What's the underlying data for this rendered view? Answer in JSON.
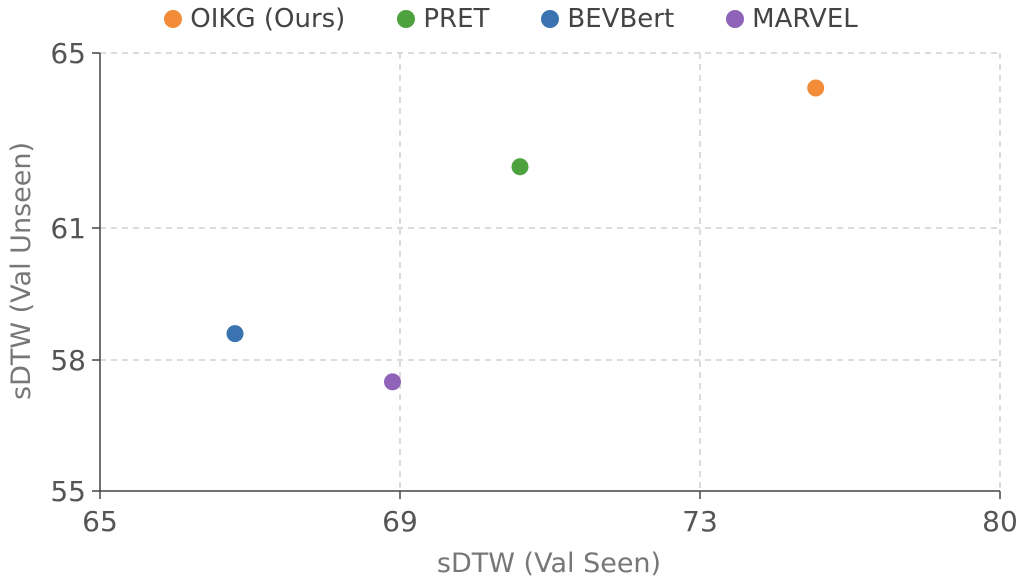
{
  "chart_data": {
    "type": "scatter",
    "xlabel": "sDTW (Val Seen)",
    "ylabel": "sDTW (Val Unseen)",
    "x_ticks": [
      "65",
      "69",
      "73",
      "80"
    ],
    "y_ticks": [
      "55",
      "58",
      "61",
      "65"
    ],
    "grid": true,
    "legend_placement": "top-center",
    "series": [
      {
        "name": "OIKG (Ours)",
        "color": "#f28c38",
        "x": 75.7,
        "y": 64.2
      },
      {
        "name": "PRET",
        "color": "#4ea13f",
        "x": 70.6,
        "y": 62.4
      },
      {
        "name": "BEVBert",
        "color": "#3a73b0",
        "x": 66.8,
        "y": 58.6
      },
      {
        "name": "MARVEL",
        "color": "#8e63b8",
        "x": 68.9,
        "y": 57.5
      }
    ]
  }
}
